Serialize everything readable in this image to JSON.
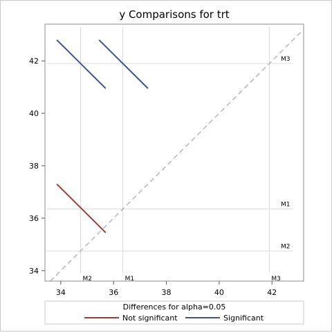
{
  "chart_data": {
    "type": "line",
    "title": "y Comparisons for trt",
    "xlim": [
      33.4,
      43.2
    ],
    "ylim": [
      33.6,
      43.4
    ],
    "x_ticks": [
      34,
      36,
      38,
      40,
      42
    ],
    "y_ticks": [
      34,
      36,
      38,
      40,
      42
    ],
    "grid": false,
    "reference_line": "diagonal",
    "groups": [
      {
        "name": "M1",
        "mean": 36.35
      },
      {
        "name": "M2",
        "mean": 34.75
      },
      {
        "name": "M3",
        "mean": 41.9
      }
    ],
    "series": [
      {
        "name": "Not significant",
        "color": "#a23a32",
        "segments": [
          {
            "x": [
              33.85,
              35.7
            ],
            "y": [
              37.3,
              35.45
            ]
          }
        ]
      },
      {
        "name": "Significant",
        "color": "#3f4f99",
        "segments": [
          {
            "x": [
              33.85,
              35.7
            ],
            "y": [
              42.8,
              40.95
            ]
          },
          {
            "x": [
              35.45,
              37.3
            ],
            "y": [
              42.8,
              40.95
            ]
          }
        ]
      }
    ],
    "legend": {
      "title": "Differences for alpha=0.05",
      "placement": "bottom"
    }
  }
}
